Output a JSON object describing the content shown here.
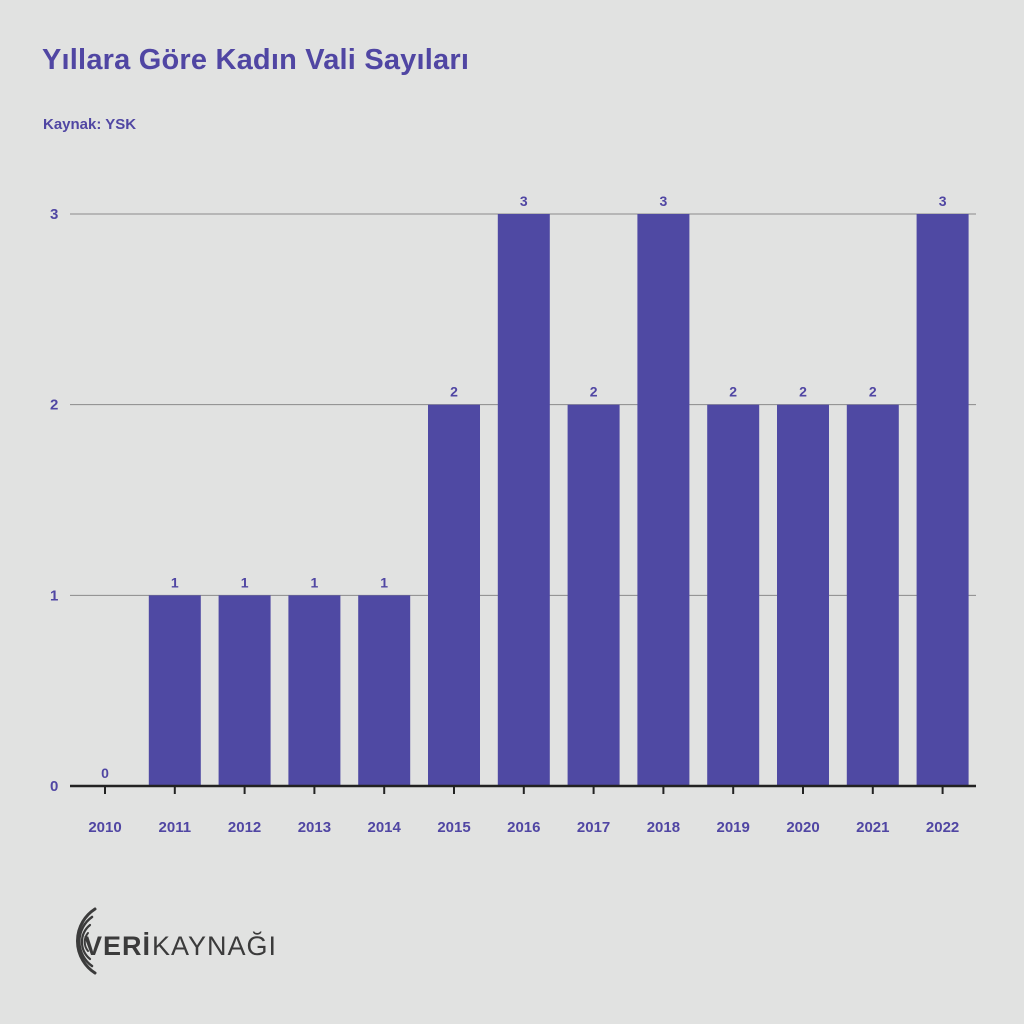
{
  "header": {
    "title": "Yıllara Göre Kadın Vali Sayıları",
    "source": "Kaynak: YSK"
  },
  "colors": {
    "bar": "#4f49a3",
    "text": "#5046a3",
    "grid": "#8a8a8a",
    "background": "#e1e2e1"
  },
  "logo": {
    "text_bold": "VERİ",
    "text_light": "KAYNAĞI"
  },
  "chart_data": {
    "type": "bar",
    "categories": [
      "2010",
      "2011",
      "2012",
      "2013",
      "2014",
      "2015",
      "2016",
      "2017",
      "2018",
      "2019",
      "2020",
      "2021",
      "2022"
    ],
    "values": [
      0,
      1,
      1,
      1,
      1,
      2,
      3,
      2,
      3,
      2,
      2,
      2,
      3
    ],
    "data_labels": true,
    "yticks": [
      0,
      1,
      2,
      3
    ],
    "ylim": [
      0,
      3
    ],
    "grid": true,
    "legend": "none"
  }
}
